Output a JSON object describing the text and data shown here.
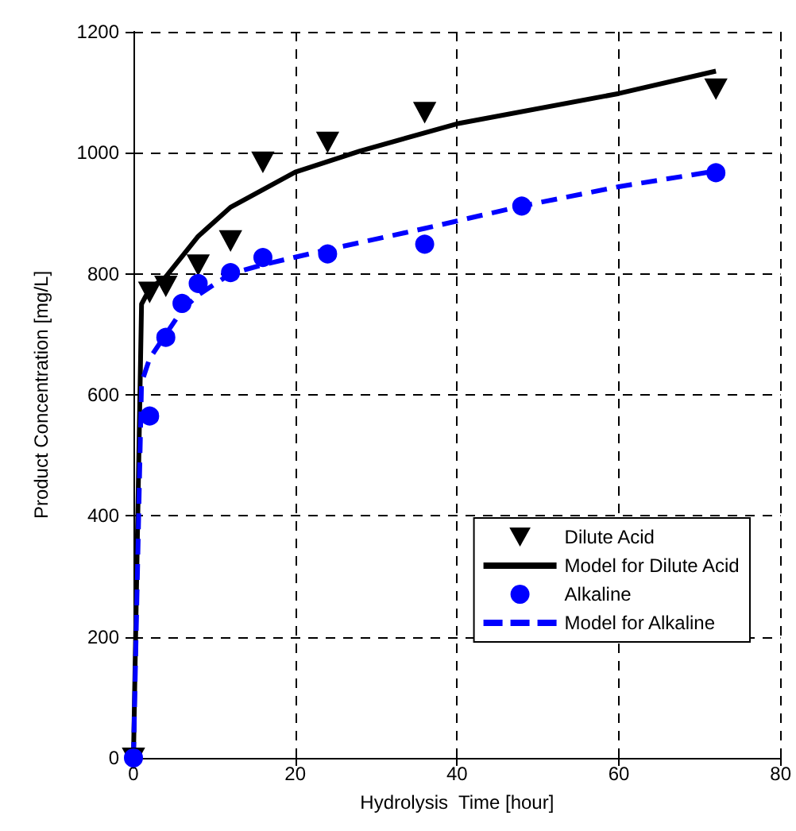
{
  "chart_data": {
    "type": "scatter",
    "xlabel": "Hydrolysis  Time [hour]",
    "ylabel": "Product Concentration [mg/L]",
    "xlim": [
      0,
      80
    ],
    "xticks": [
      0,
      20,
      40,
      60,
      80
    ],
    "ylim": [
      0,
      1200
    ],
    "yticks": [
      0,
      200,
      400,
      600,
      800,
      1000,
      1200
    ],
    "grid": true,
    "legend": "bottom right",
    "series": [
      {
        "name": "Dilute Acid",
        "marker": "triangle",
        "color": "#000000",
        "x": [
          0,
          2,
          4,
          8,
          12,
          16,
          24,
          36,
          72
        ],
        "values": [
          0,
          770,
          780,
          815,
          855,
          985,
          1018,
          1067,
          1106
        ]
      },
      {
        "name": "Model for Dilute Acid",
        "type": "line",
        "marker": "none",
        "line_style": "solid",
        "color": "#000000",
        "x": [
          0,
          1,
          2,
          4,
          8,
          12,
          20,
          28,
          40,
          60,
          72
        ],
        "values": [
          0,
          750,
          775,
          795,
          862,
          910,
          968,
          1003,
          1048,
          1098,
          1135
        ]
      },
      {
        "name": "Alkaline",
        "marker": "circle",
        "color": "#0000ff",
        "x": [
          0,
          2,
          4,
          6,
          8,
          12,
          16,
          24,
          36,
          48,
          72
        ],
        "values": [
          0,
          565,
          695,
          751,
          784,
          802,
          827,
          833,
          849,
          912,
          967
        ]
      },
      {
        "name": "Model for Alkaline",
        "type": "line",
        "marker": "none",
        "line_style": "dashed",
        "color": "#0000ff",
        "x": [
          0,
          1,
          2,
          4,
          6,
          8,
          12,
          16,
          24,
          36,
          48,
          60,
          72
        ],
        "values": [
          0,
          620,
          660,
          700,
          740,
          765,
          800,
          815,
          840,
          875,
          912,
          944,
          970
        ]
      }
    ]
  }
}
